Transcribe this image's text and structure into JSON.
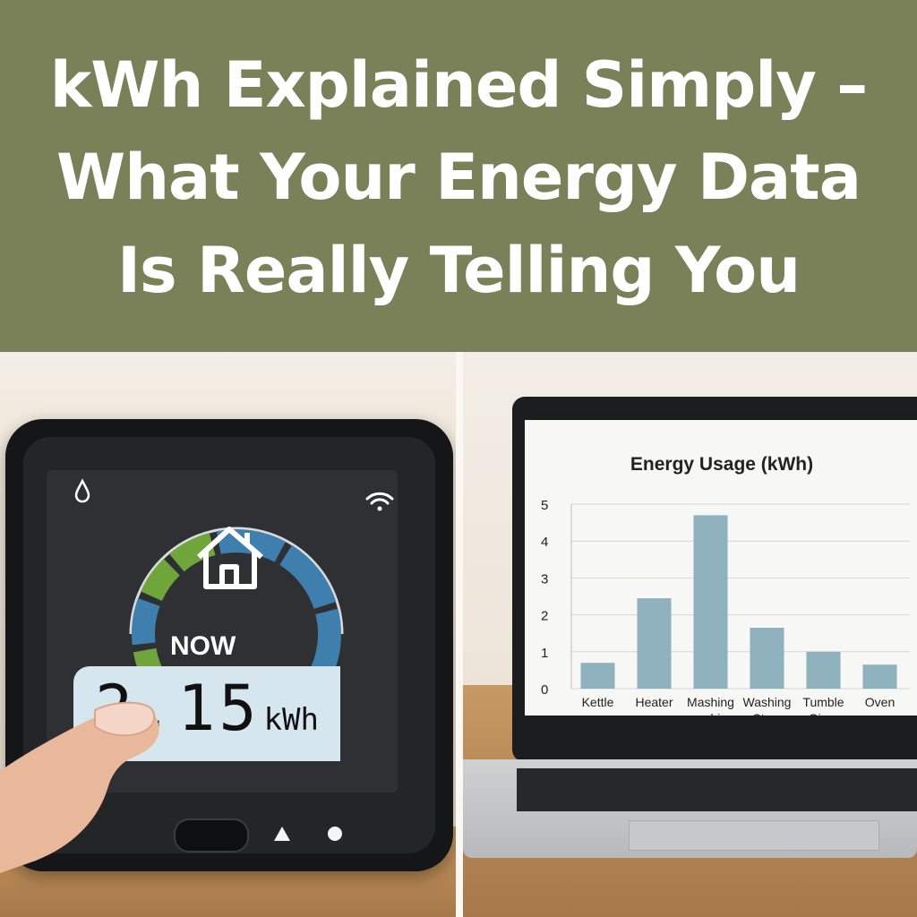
{
  "headline": {
    "line1": "kWh Explained Simply –",
    "line2": "What Your Energy Data",
    "line3": "Is Really Telling You"
  },
  "meter": {
    "status_label": "NOW",
    "reading_value": "2.15",
    "reading_unit": "kWh",
    "colors": {
      "low": "#6fa53a",
      "high": "#3f7fae"
    }
  },
  "chart_data": {
    "type": "bar",
    "title": "Energy Usage (kWh)",
    "categories": [
      "Kettle",
      "Heater",
      "Mashing machine",
      "Washing Ctyer",
      "Tumble Giver",
      "Oven"
    ],
    "category_lines": [
      [
        "Kettle"
      ],
      [
        "Heater"
      ],
      [
        "Mashing",
        "machine"
      ],
      [
        "Washing",
        "Ctyer"
      ],
      [
        "Tumble",
        "Giver"
      ],
      [
        "Oven"
      ]
    ],
    "values": [
      0.7,
      2.45,
      4.7,
      1.65,
      1.0,
      0.65
    ],
    "yticks": [
      "0",
      "1",
      "2",
      "3",
      "4",
      "5"
    ],
    "ylim": [
      0,
      5
    ],
    "grid": true,
    "bar_color": "#8fb1bd"
  }
}
